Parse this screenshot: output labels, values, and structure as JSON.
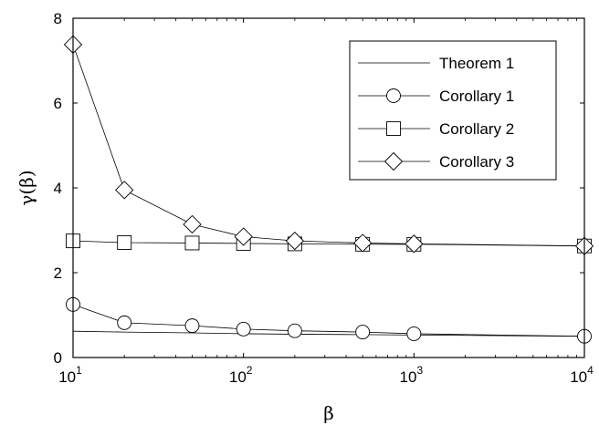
{
  "chart_data": {
    "type": "line",
    "xscale": "log",
    "xlim": [
      10,
      10000
    ],
    "ylim": [
      0,
      8
    ],
    "xlabel": "β",
    "ylabel": "γ(β)",
    "xticks": [
      {
        "base": "10",
        "exp": "1",
        "value": 10
      },
      {
        "base": "10",
        "exp": "2",
        "value": 100
      },
      {
        "base": "10",
        "exp": "3",
        "value": 1000
      },
      {
        "base": "10",
        "exp": "4",
        "value": 10000
      }
    ],
    "yticks": [
      {
        "label": "0",
        "value": 0
      },
      {
        "label": "2",
        "value": 2
      },
      {
        "label": "4",
        "value": 4
      },
      {
        "label": "6",
        "value": 6
      },
      {
        "label": "8",
        "value": 8
      }
    ],
    "legend_position": "top-right",
    "series": [
      {
        "name": "Theorem 1",
        "marker": "none",
        "x": [
          10,
          20,
          50,
          100,
          200,
          500,
          1000,
          10000
        ],
        "y": [
          0.62,
          0.6,
          0.58,
          0.56,
          0.55,
          0.54,
          0.53,
          0.5
        ]
      },
      {
        "name": "Corollary 1",
        "marker": "circle",
        "x": [
          10,
          20,
          50,
          100,
          200,
          500,
          1000,
          10000
        ],
        "y": [
          1.25,
          0.82,
          0.75,
          0.67,
          0.63,
          0.6,
          0.56,
          0.5
        ]
      },
      {
        "name": "Corollary 2",
        "marker": "square",
        "x": [
          10,
          20,
          50,
          100,
          200,
          500,
          1000,
          10000
        ],
        "y": [
          2.75,
          2.71,
          2.7,
          2.69,
          2.68,
          2.67,
          2.67,
          2.63
        ]
      },
      {
        "name": "Corollary 3",
        "marker": "diamond",
        "x": [
          10,
          20,
          50,
          100,
          200,
          500,
          1000,
          10000
        ],
        "y": [
          7.38,
          3.95,
          3.14,
          2.85,
          2.75,
          2.7,
          2.68,
          2.63
        ]
      }
    ]
  }
}
